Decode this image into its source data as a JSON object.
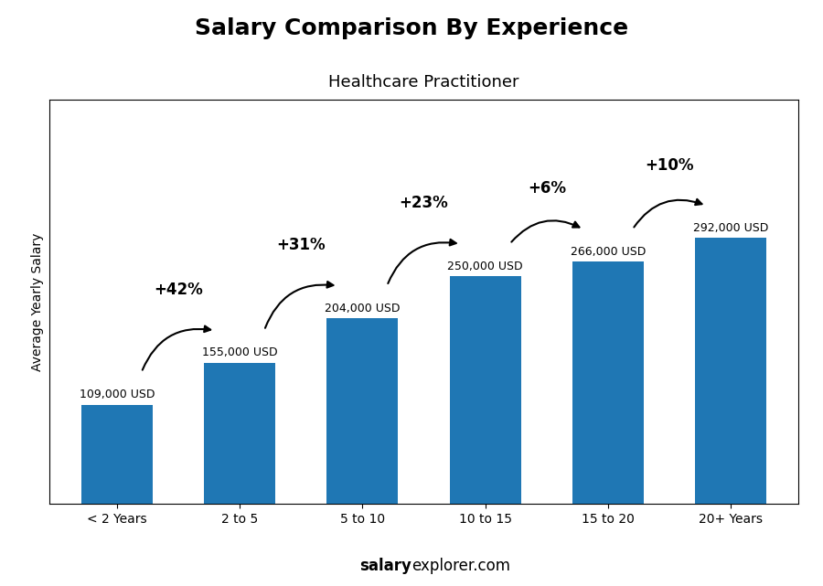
{
  "chart_data": {
    "type": "bar",
    "title": "Salary Comparison By Experience",
    "subtitle": "Healthcare Practitioner",
    "categories": [
      "< 2 Years",
      "2 to 5",
      "5 to 10",
      "10 to 15",
      "15 to 20",
      "20+ Years"
    ],
    "values": [
      109000,
      155000,
      204000,
      250000,
      266000,
      292000
    ],
    "value_labels": [
      "109,000 USD",
      "155,000 USD",
      "204,000 USD",
      "250,000 USD",
      "266,000 USD",
      "292,000 USD"
    ],
    "data_labels": true,
    "annotations": [
      "+42%",
      "+31%",
      "+23%",
      "+6%",
      "+10%"
    ],
    "ylabel": "Average Yearly Salary",
    "watermark": [
      "salary",
      "explorer.com"
    ],
    "ylim": [
      0,
      443840
    ],
    "yticks": [],
    "tick_labels": "x",
    "grid": false
  }
}
